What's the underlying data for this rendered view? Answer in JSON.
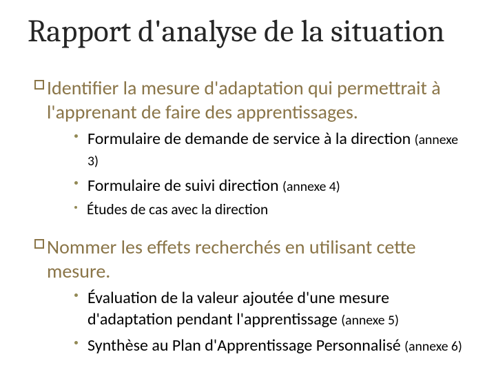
{
  "colors": {
    "title": "#262626",
    "heading": "#8a7548",
    "body": "#000000",
    "bullet": "#928955",
    "bg": "#ffffff"
  },
  "font_sizes_pt": {
    "title": 34,
    "heading": 21,
    "sub": 18,
    "sub_small": 16
  },
  "title": "Rapport d'analyse de la situation",
  "sections": [
    {
      "heading": "Identifier la mesure d'adaptation qui permettrait à l'apprenant de faire des apprentissages.",
      "items": [
        {
          "text": "Formulaire de demande de service à la direction ",
          "annex": "(annexe 3)",
          "size": "normal"
        },
        {
          "text": "Formulaire de suivi direction ",
          "annex": "(annexe 4)",
          "size": "normal"
        },
        {
          "text": "Études de cas avec la direction",
          "annex": "",
          "size": "small"
        }
      ]
    },
    {
      "heading": "Nommer les effets recherchés en utilisant cette mesure.",
      "items": [
        {
          "text": "Évaluation de la valeur ajoutée d'une mesure d'adaptation pendant l'apprentissage ",
          "annex": "(annexe 5)",
          "size": "normal"
        },
        {
          "text": "Synthèse au Plan d'Apprentissage Personnalisé ",
          "annex": "(annexe 6)",
          "size": "normal"
        }
      ]
    }
  ]
}
